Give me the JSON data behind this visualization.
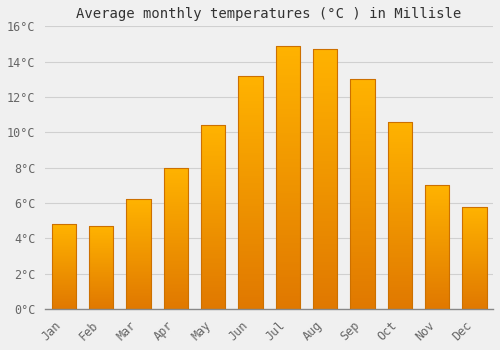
{
  "title": "Average monthly temperatures (°C ) in Millisle",
  "months": [
    "Jan",
    "Feb",
    "Mar",
    "Apr",
    "May",
    "Jun",
    "Jul",
    "Aug",
    "Sep",
    "Oct",
    "Nov",
    "Dec"
  ],
  "values": [
    4.8,
    4.7,
    6.2,
    8.0,
    10.4,
    13.2,
    14.9,
    14.7,
    13.0,
    10.6,
    7.0,
    5.8
  ],
  "bar_color_top": "#FFB300",
  "bar_color_bottom": "#E07800",
  "bar_edge_color": "#CC7000",
  "background_color": "#f0f0f0",
  "grid_color": "#d0d0d0",
  "ylim": [
    0,
    16
  ],
  "yticks": [
    0,
    2,
    4,
    6,
    8,
    10,
    12,
    14,
    16
  ],
  "title_fontsize": 10,
  "tick_fontsize": 8.5,
  "figsize": [
    5.0,
    3.5
  ],
  "dpi": 100
}
